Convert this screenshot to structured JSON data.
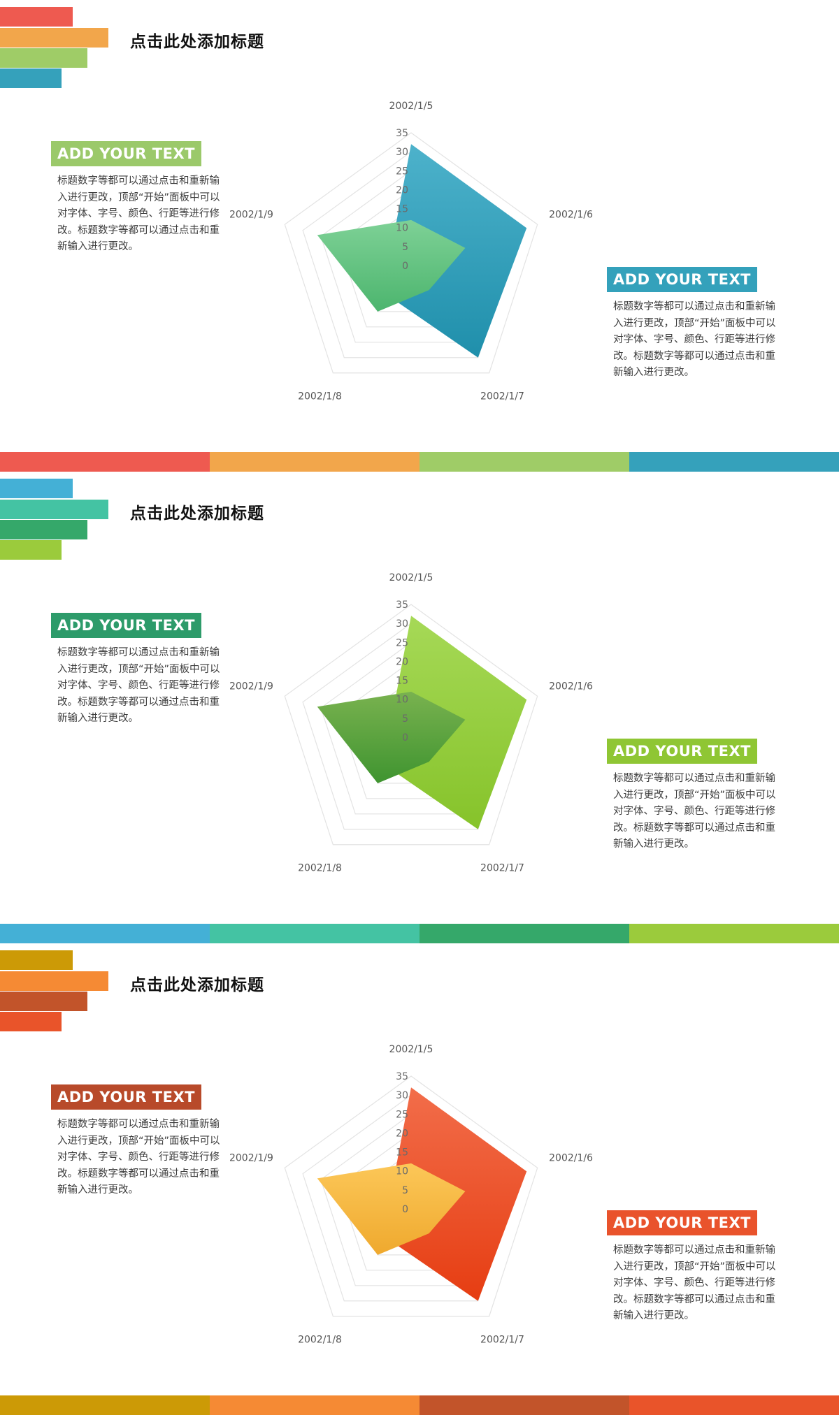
{
  "slides": [
    {
      "title": "点击此处添加标题",
      "deco_colors": [
        "#ee5a50",
        "#f2a64b",
        "#9fcc67",
        "#35a1bb"
      ],
      "bottom_colors": [
        "#ee5a50",
        "#f2a64b",
        "#9fcc67",
        "#35a1bb"
      ],
      "left_tag": {
        "text": "ADD YOUR TEXT",
        "color": "#9bc96a"
      },
      "left_para": "标题数字等都可以通过点击和重新输入进行更改，顶部“开始”面板中可以对字体、字号、颜色、行距等进行修改。标题数字等都可以通过点击和重新输入进行更改。",
      "right_tag": {
        "text": "ADD YOUR TEXT",
        "color": "#34a1bb"
      },
      "right_para": "标题数字等都可以通过点击和重新输入进行更改，顶部“开始”面板中可以对字体、字号、颜色、行距等进行修改。标题数字等都可以通过点击和重新输入进行更改。",
      "chart_data": {
        "type": "radar",
        "categories": [
          "2002/1/5",
          "2002/1/6",
          "2002/1/7",
          "2002/1/8",
          "2002/1/9"
        ],
        "ticks": [
          "0",
          "5",
          "10",
          "15",
          "20",
          "25",
          "30",
          "35"
        ],
        "ylim": [
          0,
          35
        ],
        "series": [
          {
            "values": [
              32,
              32,
              30,
              10,
              6
            ],
            "color_top": "#4db2cb",
            "color_bottom": "#1f8fab"
          },
          {
            "values": [
              12,
              15,
              8,
              15,
              26
            ],
            "color_top": "#7ed196",
            "color_bottom": "#4cb56e"
          }
        ]
      }
    },
    {
      "title": "点击此处添加标题",
      "deco_colors": [
        "#44b0d6",
        "#44c3a3",
        "#35a86a",
        "#9bcb3c"
      ],
      "bottom_colors": [
        "#44b0d6",
        "#44c3a3",
        "#35a86a",
        "#9bcb3c"
      ],
      "left_tag": {
        "text": "ADD YOUR TEXT",
        "color": "#2d9b6a"
      },
      "left_para": "标题数字等都可以通过点击和重新输入进行更改，顶部“开始”面板中可以对字体、字号、颜色、行距等进行修改。标题数字等都可以通过点击和重新输入进行更改。",
      "right_tag": {
        "text": "ADD YOUR TEXT",
        "color": "#8fc634"
      },
      "right_para": "标题数字等都可以通过点击和重新输入进行更改，顶部“开始”面板中可以对字体、字号、颜色、行距等进行修改。标题数字等都可以通过点击和重新输入进行更改。",
      "chart_data": {
        "type": "radar",
        "categories": [
          "2002/1/5",
          "2002/1/6",
          "2002/1/7",
          "2002/1/8",
          "2002/1/9"
        ],
        "ticks": [
          "0",
          "5",
          "10",
          "15",
          "20",
          "25",
          "30",
          "35"
        ],
        "ylim": [
          0,
          35
        ],
        "series": [
          {
            "values": [
              32,
              32,
              30,
              10,
              6
            ],
            "color_top": "#a6d957",
            "color_bottom": "#86c32a"
          },
          {
            "values": [
              12,
              15,
              8,
              15,
              26
            ],
            "color_top": "#79b24f",
            "color_bottom": "#3f9430"
          }
        ]
      }
    },
    {
      "title": "点击此处添加标题",
      "deco_colors": [
        "#cc9a06",
        "#f58a34",
        "#c2542a",
        "#e9542a"
      ],
      "bottom_colors": [
        "#cc9a06",
        "#f58a34",
        "#c2542a",
        "#e9542a"
      ],
      "left_tag": {
        "text": "ADD YOUR TEXT",
        "color": "#b84a2a"
      },
      "left_para": "标题数字等都可以通过点击和重新输入进行更改，顶部“开始”面板中可以对字体、字号、颜色、行距等进行修改。标题数字等都可以通过点击和重新输入进行更改。",
      "right_tag": {
        "text": "ADD YOUR TEXT",
        "color": "#e9532c"
      },
      "right_para": "标题数字等都可以通过点击和重新输入进行更改，顶部“开始”面板中可以对字体、字号、颜色、行距等进行修改。标题数字等都可以通过点击和重新输入进行更改。",
      "chart_data": {
        "type": "radar",
        "categories": [
          "2002/1/5",
          "2002/1/6",
          "2002/1/7",
          "2002/1/8",
          "2002/1/9"
        ],
        "ticks": [
          "0",
          "5",
          "10",
          "15",
          "20",
          "25",
          "30",
          "35"
        ],
        "ylim": [
          0,
          35
        ],
        "series": [
          {
            "values": [
              32,
              32,
              30,
              10,
              6
            ],
            "color_top": "#f26d4a",
            "color_bottom": "#e63d12"
          },
          {
            "values": [
              12,
              15,
              8,
              15,
              26
            ],
            "color_top": "#fcc758",
            "color_bottom": "#efa92e"
          }
        ]
      }
    }
  ]
}
